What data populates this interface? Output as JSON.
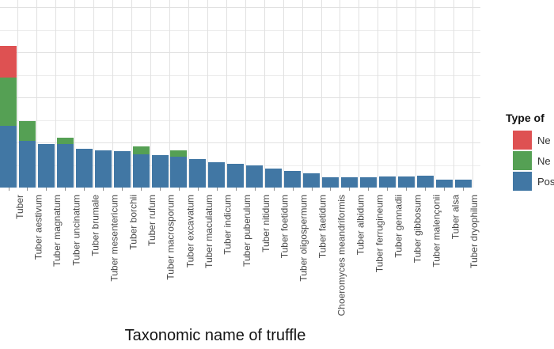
{
  "chart_data": {
    "type": "bar",
    "stacked": true,
    "orientation": "vertical",
    "title": "",
    "xlabel": "Taxonomic name of truffle",
    "ylabel": "",
    "ylim": [
      0,
      100
    ],
    "grid": "both",
    "gridline_major_every": 25,
    "gridline_minor_every": 12.5,
    "y_axis_tick_labels_visible": false,
    "note": "y-axis tick labels and full legend text are cropped off the screenshot edges; values estimated from gridlines assuming major spacing = 25",
    "legend_position": "right",
    "legend": {
      "title": "Type of",
      "items": [
        {
          "label": "Ne",
          "color": "#de5152"
        },
        {
          "label": "Ne",
          "color": "#55a054"
        },
        {
          "label": "Pos",
          "color": "#4177a4"
        }
      ]
    },
    "categories": [
      "Tuber",
      "Tuber aestivum",
      "Tuber magnatum",
      "Tuber uncinatum",
      "Tuber brumale",
      "Tuber mesentericum",
      "Tuber borchii",
      "Tuber rufum",
      "Tuber macrosporum",
      "Tuber excavatum",
      "Tuber maculatum",
      "Tuber indicum",
      "Tuber puberulum",
      "Tuber nitidum",
      "Tuber foetidum",
      "Tuber oligospermum",
      "Tuber faetidum",
      "Choeromyces meandriformis",
      "Tuber albidum",
      "Tuber ferrugineum",
      "Tuber gennadii",
      "Tuber gibbosum",
      "Tuber malençonii",
      "Tuber alsa",
      "Tuber dryophilum"
    ],
    "series": [
      {
        "name": "Pos",
        "color": "#4177a4",
        "values": [
          34,
          26,
          24,
          24,
          21.5,
          20.5,
          20,
          18.5,
          18,
          17,
          16,
          14,
          13,
          12.5,
          10.5,
          9,
          8,
          5.5,
          5.5,
          5.5,
          6,
          6,
          6.5,
          4.5,
          4.5
        ]
      },
      {
        "name": "Ne",
        "color": "#55a054",
        "values": [
          27,
          11,
          0,
          3.5,
          0,
          0,
          0,
          4.5,
          0,
          3.5,
          0,
          0,
          0,
          0,
          0,
          0,
          0,
          0,
          0,
          0,
          0,
          0,
          0,
          0,
          0
        ]
      },
      {
        "name": "Ne",
        "color": "#de5152",
        "values": [
          17.5,
          0,
          0,
          0,
          0,
          0,
          0,
          0,
          0,
          0,
          0,
          0,
          0,
          0,
          0,
          0,
          0,
          0,
          0,
          0,
          0,
          0,
          0,
          0,
          0
        ]
      }
    ]
  }
}
